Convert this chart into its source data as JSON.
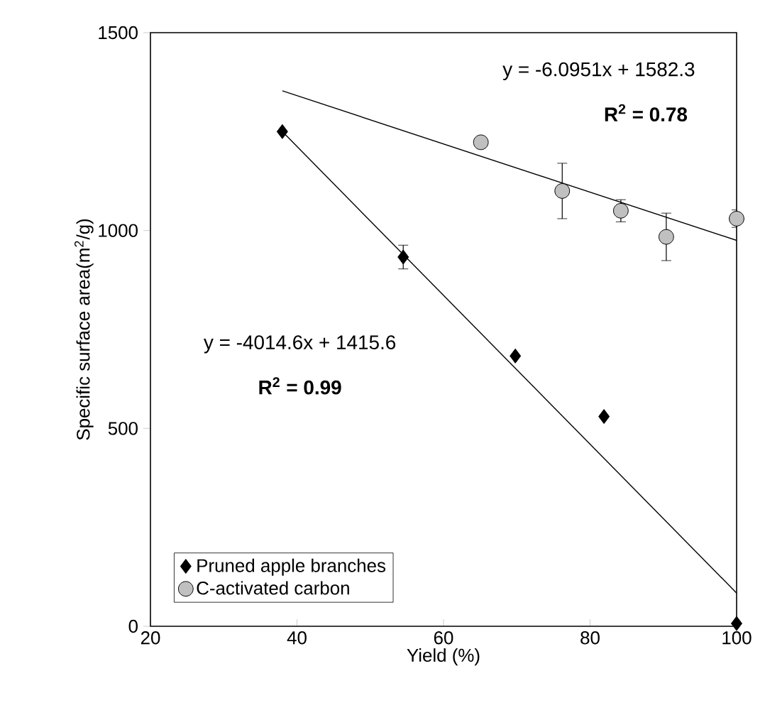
{
  "chart_data": {
    "type": "scatter",
    "xlabel": "Yield (%)",
    "ylabel": "Specific surface area(m$^{2}$/g)",
    "xlim": [
      20,
      100
    ],
    "ylim": [
      0,
      1500
    ],
    "xticks": [
      20,
      40,
      60,
      80,
      100
    ],
    "yticks": [
      0,
      500,
      1000,
      1500
    ],
    "legend": "bottom left",
    "series": [
      {
        "name": "Pruned apple branches",
        "color": "#000000",
        "marker": "diamond",
        "x": [
          38,
          54.5,
          69.8,
          81.9,
          100
        ],
        "values": [
          1250,
          933,
          683,
          530,
          7
        ],
        "errors": [
          null,
          30,
          null,
          null,
          null
        ]
      },
      {
        "name": "C-activated carbon",
        "color": "#c0c0c0",
        "marker": "circle",
        "x": [
          65.1,
          76.2,
          84.2,
          90.4,
          100
        ],
        "values": [
          1223,
          1100,
          1050,
          984,
          1030
        ],
        "errors": [
          null,
          70,
          28,
          60,
          22
        ]
      },
      {
        "type": "line",
        "color": "#000000",
        "marker": "none",
        "x": [
          38,
          100
        ],
        "values": [
          1353,
          975
        ]
      },
      {
        "type": "line",
        "color": "#000000",
        "marker": "none",
        "x": [
          38,
          100
        ],
        "values": [
          1250,
          84
        ]
      }
    ],
    "annotations": [
      "y = -6.0951x + 1582.3",
      "R$^{2}$ = 0.78",
      "y = -4014.6x + 1415.6",
      "R$^{2}$ = 0.99"
    ]
  }
}
